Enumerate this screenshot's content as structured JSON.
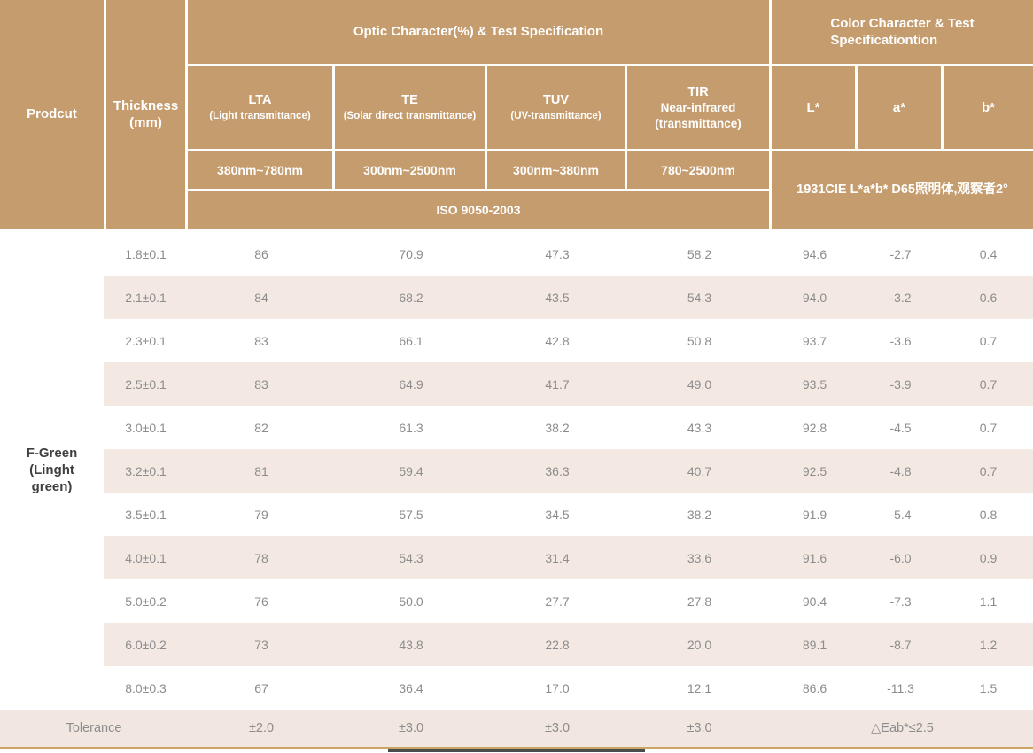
{
  "header": {
    "product_label": "Prodcut",
    "thickness": {
      "line1": "Thickness",
      "line2": "(mm)"
    },
    "optic_group_title": "Optic Character(%) & Test Specification",
    "color_group_title": {
      "line1": "Color Character & Test",
      "line2": "Specificationtion"
    },
    "columns": [
      {
        "name": "LTA",
        "sub": [
          "(Light transmittance)"
        ],
        "range": "380nm~780nm"
      },
      {
        "name": "TE",
        "sub": [
          "(Solar direct transmittance)"
        ],
        "range": "300nm~2500nm"
      },
      {
        "name": "TUV",
        "sub": [
          "(UV-transmittance)"
        ],
        "range": "300nm~380nm"
      },
      {
        "name": "TIR",
        "sub": [
          "Near-infrared",
          "(transmittance)"
        ],
        "range": "780~2500nm"
      }
    ],
    "color_columns": [
      "L*",
      "a*",
      "b*"
    ],
    "iso_label": "ISO 9050-2003",
    "cie_label": "1931CIE L*a*b*  D65照明体,观察者2°"
  },
  "product": {
    "lines": [
      "F-Green",
      "(Linght",
      "green)"
    ]
  },
  "rows": [
    {
      "thickness": "1.8±0.1",
      "lta": "86",
      "te": "70.9",
      "tuv": "47.3",
      "tir": "58.2",
      "L": "94.6",
      "a": "-2.7",
      "b": "0.4"
    },
    {
      "thickness": "2.1±0.1",
      "lta": "84",
      "te": "68.2",
      "tuv": "43.5",
      "tir": "54.3",
      "L": "94.0",
      "a": "-3.2",
      "b": "0.6"
    },
    {
      "thickness": "2.3±0.1",
      "lta": "83",
      "te": "66.1",
      "tuv": "42.8",
      "tir": "50.8",
      "L": "93.7",
      "a": "-3.6",
      "b": "0.7"
    },
    {
      "thickness": "2.5±0.1",
      "lta": "83",
      "te": "64.9",
      "tuv": "41.7",
      "tir": "49.0",
      "L": "93.5",
      "a": "-3.9",
      "b": "0.7"
    },
    {
      "thickness": "3.0±0.1",
      "lta": "82",
      "te": "61.3",
      "tuv": "38.2",
      "tir": "43.3",
      "L": "92.8",
      "a": "-4.5",
      "b": "0.7"
    },
    {
      "thickness": "3.2±0.1",
      "lta": "81",
      "te": "59.4",
      "tuv": "36.3",
      "tir": "40.7",
      "L": "92.5",
      "a": "-4.8",
      "b": "0.7"
    },
    {
      "thickness": "3.5±0.1",
      "lta": "79",
      "te": "57.5",
      "tuv": "34.5",
      "tir": "38.2",
      "L": "91.9",
      "a": "-5.4",
      "b": "0.8"
    },
    {
      "thickness": "4.0±0.1",
      "lta": "78",
      "te": "54.3",
      "tuv": "31.4",
      "tir": "33.6",
      "L": "91.6",
      "a": "-6.0",
      "b": "0.9"
    },
    {
      "thickness": "5.0±0.2",
      "lta": "76",
      "te": "50.0",
      "tuv": "27.7",
      "tir": "27.8",
      "L": "90.4",
      "a": "-7.3",
      "b": "1.1"
    },
    {
      "thickness": "6.0±0.2",
      "lta": "73",
      "te": "43.8",
      "tuv": "22.8",
      "tir": "20.0",
      "L": "89.1",
      "a": "-8.7",
      "b": "1.2"
    },
    {
      "thickness": "8.0±0.3",
      "lta": "67",
      "te": "36.4",
      "tuv": "17.0",
      "tir": "12.1",
      "L": "86.6",
      "a": "-11.3",
      "b": "1.5"
    }
  ],
  "tolerance": {
    "label": "Tolerance",
    "lta": "±2.0",
    "te": "±3.0",
    "tuv": "±3.0",
    "tir": "±3.0",
    "color": "△Eab*≤2.5"
  },
  "colors": {
    "header_bg": "#c59c6e",
    "stripe_bg": "#f3e9e2",
    "tolerance_bg": "#f1e7e0",
    "gold_line": "#cda266",
    "data_text": "#8c8c8c",
    "product_text": "#3f3f3f",
    "header_text": "#ffffff"
  }
}
